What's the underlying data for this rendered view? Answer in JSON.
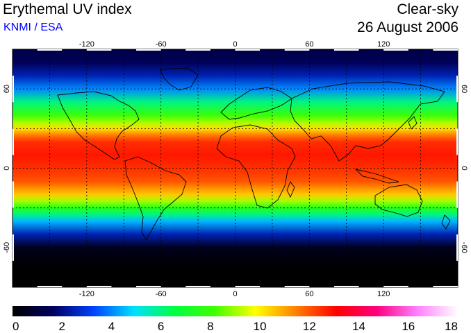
{
  "header": {
    "title": "Erythemal UV index",
    "credit": "KNMI / ESA",
    "credit_color": "#0000ff",
    "condition": "Clear-sky",
    "date": "26 August 2006"
  },
  "map": {
    "projection": "equirectangular",
    "lon_range": [
      -180,
      180
    ],
    "lat_range": [
      -90,
      90
    ],
    "grid": "dotted",
    "grid_lon": [
      -150,
      -120,
      -90,
      -60,
      -30,
      0,
      30,
      60,
      90,
      120,
      150
    ],
    "grid_lat": [
      -60,
      -30,
      0,
      30,
      60
    ],
    "lon_tick_labels": [
      "-120",
      "-60",
      "0",
      "60",
      "120"
    ],
    "lat_tick_labels": [
      "60",
      "0",
      "-60"
    ]
  },
  "colorbar": {
    "min": 0,
    "max": 18,
    "tick_labels": [
      "0",
      "2",
      "4",
      "6",
      "8",
      "10",
      "12",
      "14",
      "16",
      "18"
    ],
    "colors": [
      "#000000",
      "#000060",
      "#0040ff",
      "#00e0ff",
      "#00ff40",
      "#40ff00",
      "#ffff00",
      "#ff8000",
      "#ff0000",
      "#ff0080",
      "#ff80ff",
      "#ffffff"
    ]
  },
  "uv_profile": {
    "lat": [
      -90,
      -75,
      -60,
      -50,
      -40,
      -35,
      -30,
      -25,
      -20,
      -10,
      0,
      10,
      20,
      25,
      30,
      35,
      40,
      50,
      60,
      70,
      80,
      90
    ],
    "uv_index": [
      0,
      0,
      0.5,
      2.5,
      4.5,
      6,
      7.5,
      9,
      10.5,
      12,
      12.5,
      12.8,
      12.5,
      11.5,
      10.2,
      9,
      8,
      6,
      4,
      2.5,
      1.5,
      1.2
    ]
  }
}
